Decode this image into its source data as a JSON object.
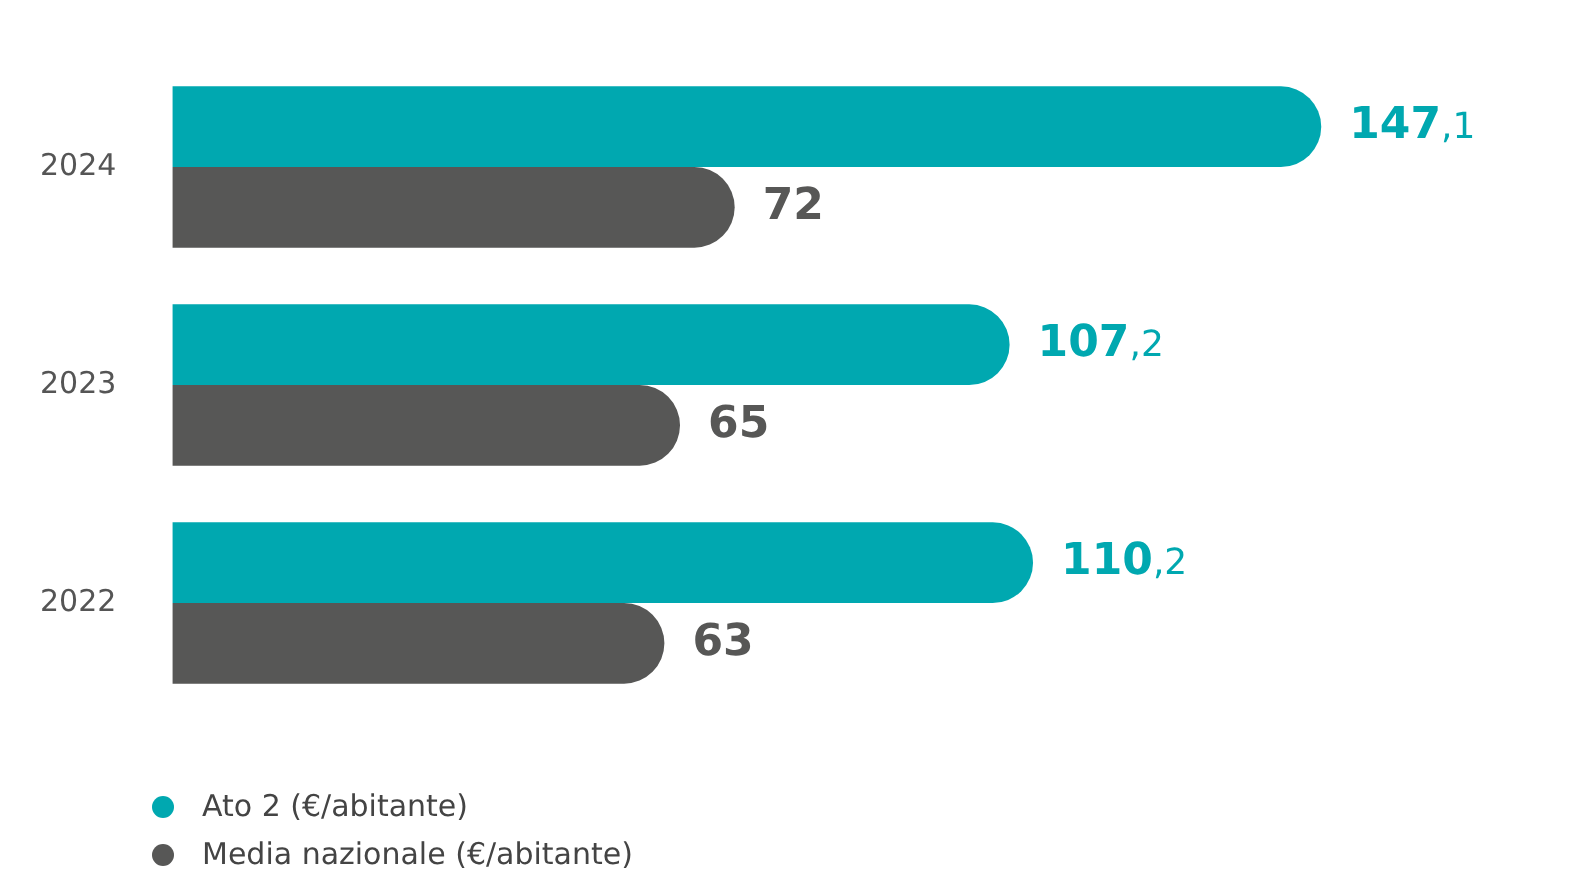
{
  "chart_data": {
    "type": "bar",
    "orientation": "horizontal",
    "categories": [
      "2024",
      "2023",
      "2022"
    ],
    "series": [
      {
        "name": "Ato 2 (€/abitante)",
        "color": "#00a8b0",
        "values": [
          147.1,
          107.2,
          110.2
        ],
        "value_labels": [
          "147,1",
          "107,2",
          "110,2"
        ]
      },
      {
        "name": "Media nazionale (€/abitante)",
        "color": "#575756",
        "values": [
          72,
          65,
          63
        ],
        "value_labels": [
          "72",
          "65",
          "63"
        ]
      }
    ],
    "grid": false,
    "legend": "bottom left",
    "tick_labels": "y"
  }
}
